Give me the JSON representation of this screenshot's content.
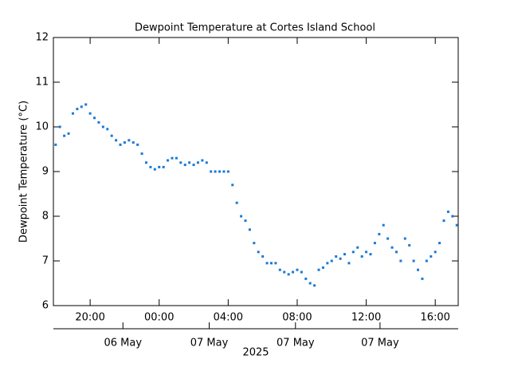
{
  "chart_data": {
    "type": "scatter",
    "title": "Dewpoint Temperature at Cortes Island School",
    "ylabel": "Dewpoint Temperature (°C)",
    "x": [
      18,
      18.25,
      18.5,
      18.75,
      19,
      19.25,
      19.5,
      19.75,
      20,
      20.25,
      20.5,
      20.75,
      21,
      21.25,
      21.5,
      21.75,
      22,
      22.25,
      22.5,
      22.75,
      23,
      23.25,
      23.5,
      23.75,
      24,
      24.25,
      24.5,
      24.75,
      25,
      25.25,
      25.5,
      25.75,
      26,
      26.25,
      26.5,
      26.75,
      27,
      27.25,
      27.5,
      27.75,
      28,
      28.25,
      28.5,
      28.75,
      29,
      29.25,
      29.5,
      29.75,
      30,
      30.25,
      30.5,
      30.75,
      31,
      31.25,
      31.5,
      31.75,
      32,
      32.25,
      32.5,
      32.75,
      33,
      33.25,
      33.5,
      33.75,
      34,
      34.25,
      34.5,
      34.75,
      35,
      35.25,
      35.5,
      35.75,
      36,
      36.25,
      36.5,
      36.75,
      37,
      37.25,
      37.5,
      37.75,
      38,
      38.25,
      38.5,
      38.75,
      39,
      39.25,
      39.5,
      39.75,
      40,
      40.25,
      40.5,
      40.75,
      41,
      41.25
    ],
    "values": [
      9.6,
      10.0,
      9.8,
      9.85,
      10.3,
      10.4,
      10.45,
      10.5,
      10.3,
      10.2,
      10.1,
      10.0,
      9.95,
      9.8,
      9.7,
      9.6,
      9.65,
      9.7,
      9.65,
      9.6,
      9.4,
      9.2,
      9.1,
      9.05,
      9.1,
      9.1,
      9.25,
      9.3,
      9.3,
      9.2,
      9.15,
      9.2,
      9.15,
      9.2,
      9.25,
      9.2,
      9.0,
      9.0,
      9.0,
      9.0,
      9.0,
      8.7,
      8.3,
      8.0,
      7.9,
      7.7,
      7.4,
      7.2,
      7.1,
      6.95,
      6.95,
      6.95,
      6.8,
      6.75,
      6.7,
      6.75,
      6.8,
      6.75,
      6.6,
      6.5,
      6.45,
      6.8,
      6.85,
      6.95,
      7.0,
      7.1,
      7.05,
      7.15,
      6.95,
      7.2,
      7.3,
      7.1,
      7.2,
      7.15,
      7.4,
      7.6,
      7.8,
      7.5,
      7.3,
      7.2,
      7.0,
      7.5,
      7.35,
      7.0,
      6.8,
      6.6,
      7.0,
      7.1,
      7.2,
      7.4,
      7.9,
      8.1,
      8.0,
      7.8
    ],
    "color": "#1a7ad4",
    "xlim": [
      17.87,
      41.33
    ],
    "xticks": [
      {
        "value": 20,
        "label": "20:00"
      },
      {
        "value": 24,
        "label": "00:00"
      },
      {
        "value": 28,
        "label": "04:00"
      },
      {
        "value": 32,
        "label": "08:00"
      },
      {
        "value": 36,
        "label": "12:00"
      },
      {
        "value": 40,
        "label": "16:00"
      }
    ],
    "x2ticks": [
      {
        "value": 21.9,
        "label": "06 May"
      },
      {
        "value": 26.9,
        "label": "07 May"
      },
      {
        "value": 31.9,
        "label": "07 May"
      },
      {
        "value": 36.8,
        "label": "07 May"
      }
    ],
    "x2label": "2025",
    "ylim": [
      6,
      12
    ],
    "yticks": [
      6,
      7,
      8,
      9,
      10,
      11,
      12
    ]
  }
}
